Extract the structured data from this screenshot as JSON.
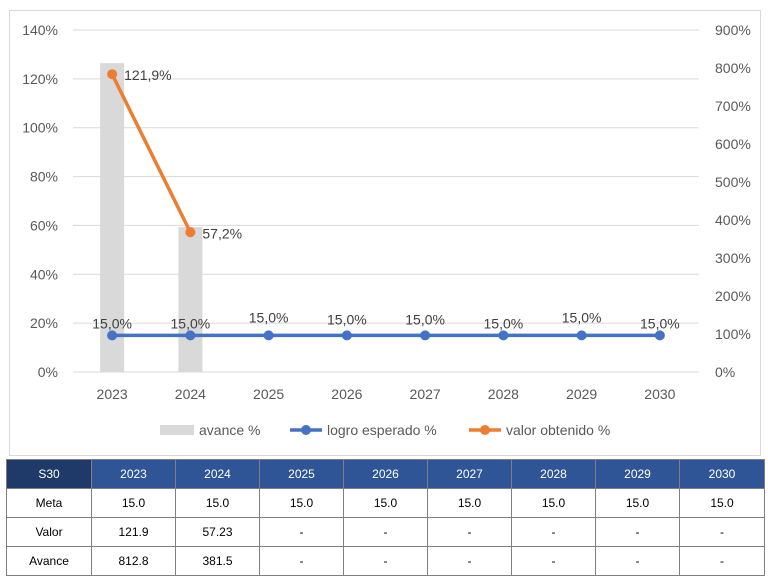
{
  "chart_data": {
    "type": "bar",
    "categories": [
      "2023",
      "2024",
      "2025",
      "2026",
      "2027",
      "2028",
      "2029",
      "2030"
    ],
    "series": [
      {
        "name": "avance %",
        "kind": "bar",
        "axis": "right",
        "values": [
          812.8,
          381.5,
          null,
          null,
          null,
          null,
          null,
          null
        ],
        "color": "#d9d9d9"
      },
      {
        "name": "logro esperado %",
        "kind": "line",
        "axis": "left",
        "values": [
          15.0,
          15.0,
          15.0,
          15.0,
          15.0,
          15.0,
          15.0,
          15.0
        ],
        "color": "#4472c4"
      },
      {
        "name": "valor obtenido %",
        "kind": "line",
        "axis": "left",
        "values": [
          121.9,
          57.2,
          null,
          null,
          null,
          null,
          null,
          null
        ],
        "color": "#ed7d31"
      }
    ],
    "data_labels": {
      "logro esperado %": [
        "15,0%",
        "15,0%",
        "15,0%",
        "15,0%",
        "15,0%",
        "15,0%",
        "15,0%",
        "15,0%"
      ],
      "valor obtenido %": [
        "121,9%",
        "57,2%"
      ]
    },
    "y_left": {
      "ylim": [
        0,
        140
      ],
      "ticks": [
        "0%",
        "20%",
        "40%",
        "60%",
        "80%",
        "100%",
        "120%",
        "140%"
      ]
    },
    "y_right": {
      "ylim": [
        0,
        900
      ],
      "ticks": [
        "0%",
        "100%",
        "200%",
        "300%",
        "400%",
        "500%",
        "600%",
        "700%",
        "800%",
        "900%"
      ]
    },
    "grid": true,
    "legend": "bottom"
  },
  "table": {
    "header": [
      "S30",
      "2023",
      "2024",
      "2025",
      "2026",
      "2027",
      "2028",
      "2029",
      "2030"
    ],
    "rows": [
      [
        "Meta",
        "15.0",
        "15.0",
        "15.0",
        "15.0",
        "15.0",
        "15.0",
        "15.0",
        "15.0"
      ],
      [
        "Valor",
        "121.9",
        "57.23",
        "-",
        "-",
        "-",
        "-",
        "-",
        "-"
      ],
      [
        "Avance",
        "812.8",
        "381.5",
        "-",
        "-",
        "-",
        "-",
        "-",
        "-"
      ]
    ]
  }
}
